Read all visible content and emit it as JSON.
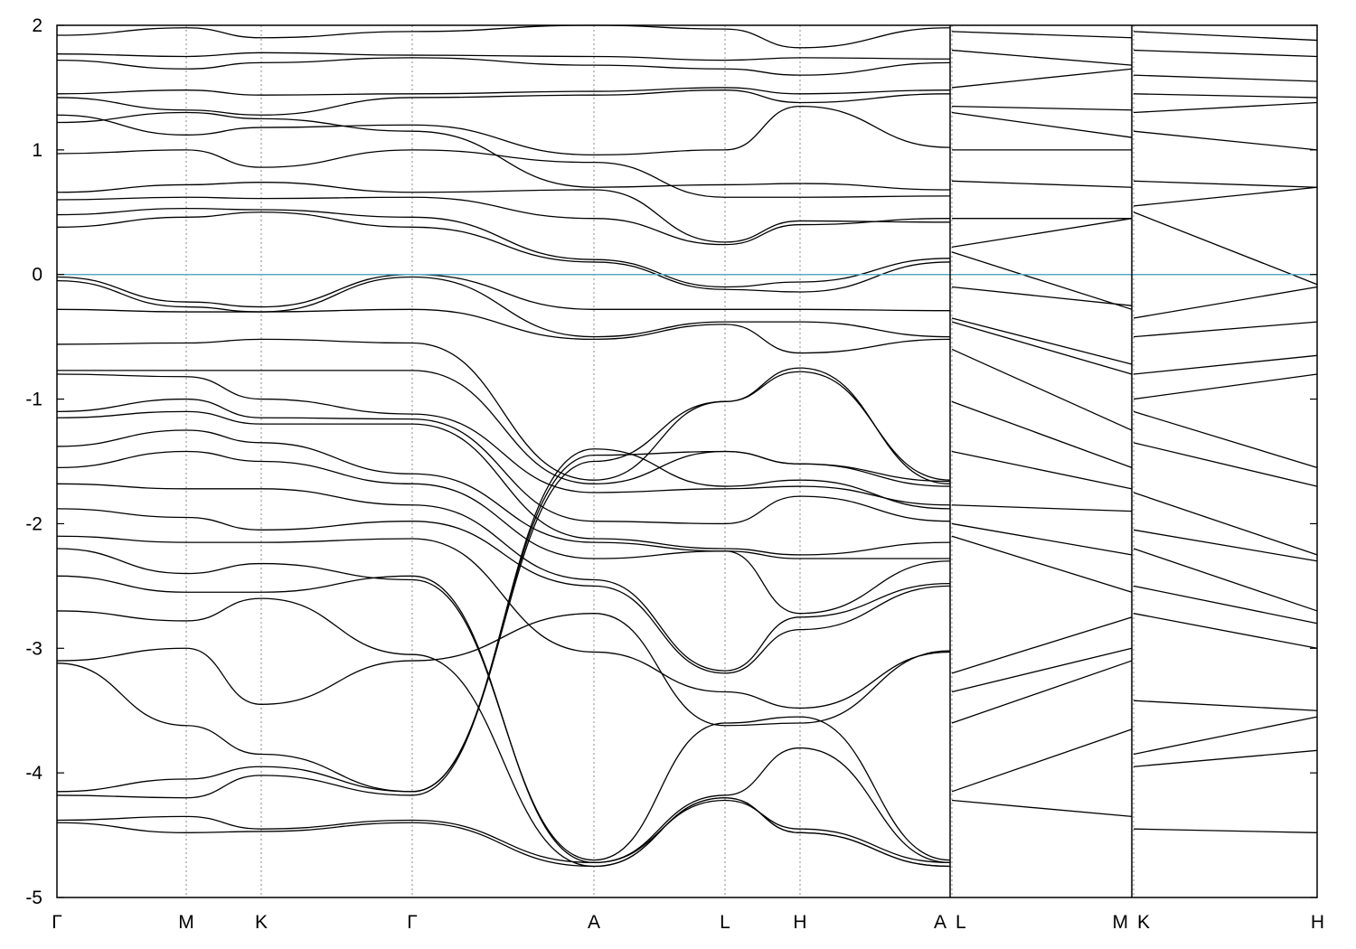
{
  "chart_data": {
    "type": "line",
    "title": "",
    "xlabel": "",
    "ylabel": "",
    "ylim": [
      -5,
      2
    ],
    "yticks": [
      2,
      1,
      0,
      -1,
      -2,
      -3,
      -4,
      -5
    ],
    "ytick_labels": [
      "2",
      "1",
      "0",
      "-1",
      "-2",
      "-3",
      "-4",
      "-5"
    ],
    "xlim": [
      0,
      1394
    ],
    "kpoints": [
      {
        "label": "Γ",
        "x": 0
      },
      {
        "label": "M",
        "x": 143
      },
      {
        "label": "K",
        "x": 226
      },
      {
        "label": "Γ",
        "x": 393
      },
      {
        "label": "A",
        "x": 594
      },
      {
        "label": "L",
        "x": 739
      },
      {
        "label": "H",
        "x": 822
      },
      {
        "label": "A",
        "x": 988
      },
      {
        "label": "L",
        "x": 990
      },
      {
        "label": "M",
        "x": 1189
      },
      {
        "label": "K",
        "x": 1191
      },
      {
        "label": "H",
        "x": 1394
      }
    ],
    "path_breaks": [
      988,
      1189
    ],
    "fermi_level": 0,
    "grid": false,
    "legend": "none",
    "colors": {
      "bands": "#000000",
      "fermi": "#5aa9c4",
      "kpath_lines": "#888888"
    },
    "series": [
      {
        "x": [
          0,
          143,
          226,
          393,
          594,
          739,
          822,
          988
        ],
        "y": [
          1.92,
          1.98,
          1.9,
          1.95,
          2.0,
          1.97,
          1.82,
          1.98
        ]
      },
      {
        "x": [
          0,
          143,
          226,
          393,
          594,
          739,
          822,
          988
        ],
        "y": [
          1.77,
          1.75,
          1.78,
          1.76,
          1.75,
          1.72,
          1.74,
          1.73
        ]
      },
      {
        "x": [
          0,
          143,
          226,
          393,
          594,
          739,
          822,
          988
        ],
        "y": [
          1.72,
          1.65,
          1.7,
          1.74,
          1.68,
          1.65,
          1.6,
          1.7
        ]
      },
      {
        "x": [
          0,
          143,
          226,
          393,
          594,
          739,
          822,
          988
        ],
        "y": [
          1.45,
          1.48,
          1.44,
          1.45,
          1.47,
          1.5,
          1.45,
          1.48
        ]
      },
      {
        "x": [
          0,
          143,
          226,
          393,
          594,
          739,
          822,
          988
        ],
        "y": [
          1.42,
          1.32,
          1.28,
          1.42,
          1.44,
          1.48,
          1.38,
          1.45
        ]
      },
      {
        "x": [
          0,
          143,
          226,
          393,
          594,
          739,
          822,
          988
        ],
        "y": [
          1.28,
          1.12,
          1.18,
          1.2,
          0.96,
          1.0,
          1.35,
          1.02
        ]
      },
      {
        "x": [
          0,
          143,
          226,
          393,
          594,
          739,
          822,
          988
        ],
        "y": [
          1.22,
          1.3,
          1.25,
          1.15,
          0.7,
          0.72,
          0.73,
          0.68
        ]
      },
      {
        "x": [
          0,
          143,
          226,
          393,
          594,
          739,
          822,
          988
        ],
        "y": [
          0.97,
          1.0,
          0.86,
          1.0,
          0.9,
          0.62,
          0.62,
          0.63
        ]
      },
      {
        "x": [
          0,
          143,
          226,
          393,
          594,
          739,
          822,
          988
        ],
        "y": [
          0.66,
          0.72,
          0.74,
          0.66,
          0.68,
          0.26,
          0.43,
          0.42
        ]
      },
      {
        "x": [
          0,
          143,
          226,
          393,
          594,
          739,
          822,
          988
        ],
        "y": [
          0.6,
          0.62,
          0.61,
          0.62,
          0.45,
          0.24,
          0.4,
          0.45
        ]
      },
      {
        "x": [
          0,
          143,
          226,
          393,
          594,
          739,
          822,
          988
        ],
        "y": [
          0.48,
          0.53,
          0.52,
          0.46,
          0.12,
          -0.1,
          -0.06,
          0.13
        ]
      },
      {
        "x": [
          0,
          143,
          226,
          393,
          594,
          739,
          822,
          988
        ],
        "y": [
          0.38,
          0.46,
          0.5,
          0.38,
          0.1,
          -0.12,
          -0.14,
          0.1
        ]
      },
      {
        "x": [
          0,
          143,
          226,
          393,
          594,
          739,
          822,
          988
        ],
        "y": [
          -0.02,
          -0.22,
          -0.26,
          0.0,
          -0.28,
          -0.28,
          -0.28,
          -0.29
        ]
      },
      {
        "x": [
          0,
          143,
          226,
          393,
          594,
          739,
          822,
          988
        ],
        "y": [
          -0.05,
          -0.26,
          -0.3,
          -0.02,
          -0.5,
          -0.38,
          -0.38,
          -0.5
        ]
      },
      {
        "x": [
          0,
          143,
          226,
          393,
          594,
          739,
          822,
          988
        ],
        "y": [
          -0.28,
          -0.3,
          -0.3,
          -0.28,
          -0.52,
          -0.4,
          -0.63,
          -0.52
        ]
      },
      {
        "x": [
          0,
          143,
          226,
          393,
          594,
          739,
          822,
          988
        ],
        "y": [
          -0.56,
          -0.55,
          -0.52,
          -0.55,
          -1.65,
          -1.02,
          -0.75,
          -1.68
        ]
      },
      {
        "x": [
          0,
          143,
          226,
          393,
          594,
          739,
          822,
          988
        ],
        "y": [
          -0.77,
          -0.77,
          -0.77,
          -0.77,
          -1.68,
          -1.42,
          -1.52,
          -1.7
        ]
      },
      {
        "x": [
          0,
          143,
          226,
          393,
          594,
          739,
          822,
          988
        ],
        "y": [
          -0.8,
          -0.82,
          -1.0,
          -1.12,
          -1.75,
          -1.72,
          -1.7,
          -1.85
        ]
      },
      {
        "x": [
          0,
          143,
          226,
          393,
          594,
          739,
          822,
          988
        ],
        "y": [
          -1.1,
          -1.0,
          -1.15,
          -1.16,
          -1.98,
          -2.0,
          -1.78,
          -1.98
        ]
      },
      {
        "x": [
          0,
          143,
          226,
          393,
          594,
          739,
          822,
          988
        ],
        "y": [
          -1.15,
          -1.1,
          -1.2,
          -1.2,
          -2.12,
          -2.2,
          -2.25,
          -2.15
        ]
      },
      {
        "x": [
          0,
          143,
          226,
          393,
          594,
          739,
          822,
          988
        ],
        "y": [
          -1.38,
          -1.25,
          -1.35,
          -1.6,
          -2.15,
          -2.22,
          -2.28,
          -2.28
        ]
      },
      {
        "x": [
          0,
          143,
          226,
          393,
          594,
          739,
          822,
          988
        ],
        "y": [
          -1.55,
          -1.42,
          -1.5,
          -1.68,
          -2.28,
          -2.22,
          -2.72,
          -2.3
        ]
      },
      {
        "x": [
          0,
          143,
          226,
          393,
          594,
          739,
          822,
          988
        ],
        "y": [
          -1.68,
          -1.72,
          -1.72,
          -1.85,
          -2.45,
          -3.18,
          -2.75,
          -2.48
        ]
      },
      {
        "x": [
          0,
          143,
          226,
          393,
          594,
          739,
          822,
          988
        ],
        "y": [
          -1.88,
          -1.95,
          -2.05,
          -1.98,
          -2.5,
          -3.2,
          -2.85,
          -2.5
        ]
      },
      {
        "x": [
          0,
          143,
          226,
          393,
          594,
          739,
          822,
          988
        ],
        "y": [
          -2.1,
          -2.15,
          -2.15,
          -2.12,
          -3.03,
          -3.35,
          -3.48,
          -3.03
        ]
      },
      {
        "x": [
          0,
          143,
          226,
          393,
          594,
          739,
          822,
          988
        ],
        "y": [
          -2.2,
          -2.4,
          -2.32,
          -2.45,
          -4.7,
          -3.6,
          -3.55,
          -4.7
        ]
      },
      {
        "x": [
          0,
          143,
          226,
          393,
          594,
          739,
          822,
          988
        ],
        "y": [
          -2.42,
          -2.55,
          -2.55,
          -2.42,
          -4.72,
          -4.18,
          -3.8,
          -4.72
        ]
      },
      {
        "x": [
          0,
          143,
          226,
          393,
          594,
          739,
          822,
          988
        ],
        "y": [
          -2.7,
          -2.78,
          -2.6,
          -3.05,
          -4.75,
          -4.2,
          -4.48,
          -4.75
        ]
      },
      {
        "x": [
          0,
          143,
          226,
          393,
          594,
          739,
          822,
          988
        ],
        "y": [
          -3.1,
          -3.0,
          -3.45,
          -3.1,
          -2.72,
          -3.62,
          -3.6,
          -3.02
        ]
      },
      {
        "x": [
          0,
          143,
          226,
          393,
          594,
          739,
          822,
          988
        ],
        "y": [
          -3.12,
          -3.62,
          -3.85,
          -4.15,
          -1.5,
          -1.02,
          -0.78,
          -1.65
        ]
      },
      {
        "x": [
          0,
          143,
          226,
          393,
          594,
          739,
          822,
          988
        ],
        "y": [
          -4.15,
          -4.05,
          -3.95,
          -4.15,
          -1.45,
          -1.42,
          -1.52,
          -1.66
        ]
      },
      {
        "x": [
          0,
          143,
          226,
          393,
          594,
          739,
          822,
          988
        ],
        "y": [
          -4.18,
          -4.2,
          -4.02,
          -4.18,
          -1.4,
          -1.7,
          -1.65,
          -1.88
        ]
      },
      {
        "x": [
          0,
          143,
          226,
          393,
          594,
          739,
          822,
          988
        ],
        "y": [
          -4.38,
          -4.35,
          -4.45,
          -4.38,
          -4.72,
          -4.22,
          -4.45,
          -4.72
        ]
      },
      {
        "x": [
          0,
          143,
          226,
          393,
          594,
          739,
          822,
          988
        ],
        "y": [
          -4.4,
          -4.48,
          -4.47,
          -4.4,
          -4.75,
          -4.2,
          -4.48,
          -4.75
        ]
      },
      {
        "x": [
          990,
          1189
        ],
        "y": [
          1.95,
          1.9
        ]
      },
      {
        "x": [
          990,
          1189
        ],
        "y": [
          1.8,
          1.68
        ]
      },
      {
        "x": [
          990,
          1189
        ],
        "y": [
          1.5,
          1.65
        ]
      },
      {
        "x": [
          990,
          1189
        ],
        "y": [
          1.35,
          1.32
        ]
      },
      {
        "x": [
          990,
          1189
        ],
        "y": [
          1.3,
          1.1
        ]
      },
      {
        "x": [
          990,
          1189
        ],
        "y": [
          1.0,
          1.0
        ]
      },
      {
        "x": [
          990,
          1189
        ],
        "y": [
          0.75,
          0.7
        ]
      },
      {
        "x": [
          990,
          1189
        ],
        "y": [
          0.45,
          0.45
        ]
      },
      {
        "x": [
          990,
          1189
        ],
        "y": [
          0.22,
          0.45
        ]
      },
      {
        "x": [
          990,
          1189
        ],
        "y": [
          0.18,
          -0.28
        ]
      },
      {
        "x": [
          990,
          1189
        ],
        "y": [
          -0.1,
          -0.25
        ]
      },
      {
        "x": [
          990,
          1189
        ],
        "y": [
          -0.35,
          -0.72
        ]
      },
      {
        "x": [
          990,
          1189
        ],
        "y": [
          -0.38,
          -0.8
        ]
      },
      {
        "x": [
          990,
          1189
        ],
        "y": [
          -0.6,
          -1.25
        ]
      },
      {
        "x": [
          990,
          1189
        ],
        "y": [
          -1.02,
          -1.55
        ]
      },
      {
        "x": [
          990,
          1189
        ],
        "y": [
          -1.42,
          -1.72
        ]
      },
      {
        "x": [
          990,
          1189
        ],
        "y": [
          -1.85,
          -1.9
        ]
      },
      {
        "x": [
          990,
          1189
        ],
        "y": [
          -2.0,
          -2.25
        ]
      },
      {
        "x": [
          990,
          1189
        ],
        "y": [
          -2.1,
          -2.55
        ]
      },
      {
        "x": [
          990,
          1189
        ],
        "y": [
          -3.2,
          -2.75
        ]
      },
      {
        "x": [
          990,
          1189
        ],
        "y": [
          -3.35,
          -3.0
        ]
      },
      {
        "x": [
          990,
          1189
        ],
        "y": [
          -3.6,
          -3.1
        ]
      },
      {
        "x": [
          990,
          1189
        ],
        "y": [
          -4.15,
          -3.65
        ]
      },
      {
        "x": [
          990,
          1189
        ],
        "y": [
          -4.22,
          -4.35
        ]
      },
      {
        "x": [
          1191,
          1394
        ],
        "y": [
          1.95,
          1.88
        ]
      },
      {
        "x": [
          1191,
          1394
        ],
        "y": [
          1.8,
          1.75
        ]
      },
      {
        "x": [
          1191,
          1394
        ],
        "y": [
          1.6,
          1.55
        ]
      },
      {
        "x": [
          1191,
          1394
        ],
        "y": [
          1.45,
          1.42
        ]
      },
      {
        "x": [
          1191,
          1394
        ],
        "y": [
          1.3,
          1.38
        ]
      },
      {
        "x": [
          1191,
          1394
        ],
        "y": [
          1.15,
          1.0
        ]
      },
      {
        "x": [
          1191,
          1394
        ],
        "y": [
          0.75,
          0.7
        ]
      },
      {
        "x": [
          1191,
          1394
        ],
        "y": [
          0.55,
          0.7
        ]
      },
      {
        "x": [
          1191,
          1394
        ],
        "y": [
          0.5,
          -0.08
        ]
      },
      {
        "x": [
          1191,
          1394
        ],
        "y": [
          -0.35,
          -0.1
        ]
      },
      {
        "x": [
          1191,
          1394
        ],
        "y": [
          -0.5,
          -0.38
        ]
      },
      {
        "x": [
          1191,
          1394
        ],
        "y": [
          -0.8,
          -0.65
        ]
      },
      {
        "x": [
          1191,
          1394
        ],
        "y": [
          -1.0,
          -0.8
        ]
      },
      {
        "x": [
          1191,
          1394
        ],
        "y": [
          -1.1,
          -1.55
        ]
      },
      {
        "x": [
          1191,
          1394
        ],
        "y": [
          -1.35,
          -1.7
        ]
      },
      {
        "x": [
          1191,
          1394
        ],
        "y": [
          -1.75,
          -2.25
        ]
      },
      {
        "x": [
          1191,
          1394
        ],
        "y": [
          -2.05,
          -2.3
        ]
      },
      {
        "x": [
          1191,
          1394
        ],
        "y": [
          -2.2,
          -2.7
        ]
      },
      {
        "x": [
          1191,
          1394
        ],
        "y": [
          -2.5,
          -2.8
        ]
      },
      {
        "x": [
          1191,
          1394
        ],
        "y": [
          -2.72,
          -3.0
        ]
      },
      {
        "x": [
          1191,
          1394
        ],
        "y": [
          -3.42,
          -3.5
        ]
      },
      {
        "x": [
          1191,
          1394
        ],
        "y": [
          -3.85,
          -3.55
        ]
      },
      {
        "x": [
          1191,
          1394
        ],
        "y": [
          -3.95,
          -3.82
        ]
      },
      {
        "x": [
          1191,
          1394
        ],
        "y": [
          -4.45,
          -4.48
        ]
      }
    ]
  }
}
